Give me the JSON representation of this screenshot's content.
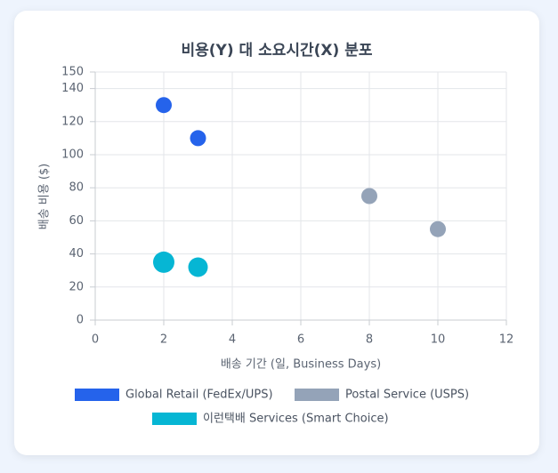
{
  "chart_data": {
    "type": "bubble",
    "title": "비용(Y) 대 소요시간(X) 분포",
    "x_label": "배송 기간 (일, Business Days)",
    "y_label": "배송 비용 ($)",
    "xlim": [
      0,
      12
    ],
    "xticks": [
      0,
      2,
      4,
      6,
      8,
      10,
      12
    ],
    "ylim": [
      0,
      150
    ],
    "yticks": [
      0,
      20,
      40,
      60,
      80,
      100,
      120,
      140,
      150
    ],
    "grid": true,
    "series": [
      {
        "name": "Global Retail (FedEx/UPS)",
        "color": "#2563eb",
        "x": [
          2,
          3
        ],
        "values": [
          130,
          110
        ],
        "sizes": [
          9,
          9
        ]
      },
      {
        "name": "Postal Service (USPS)",
        "color": "#94a3b8",
        "x": [
          8,
          10
        ],
        "values": [
          75,
          55
        ],
        "sizes": [
          9,
          9
        ]
      },
      {
        "name": "이런택배 Services (Smart Choice)",
        "color": "#06b6d4",
        "x": [
          2,
          3
        ],
        "values": [
          35,
          32
        ],
        "sizes": [
          12,
          11
        ]
      }
    ]
  }
}
